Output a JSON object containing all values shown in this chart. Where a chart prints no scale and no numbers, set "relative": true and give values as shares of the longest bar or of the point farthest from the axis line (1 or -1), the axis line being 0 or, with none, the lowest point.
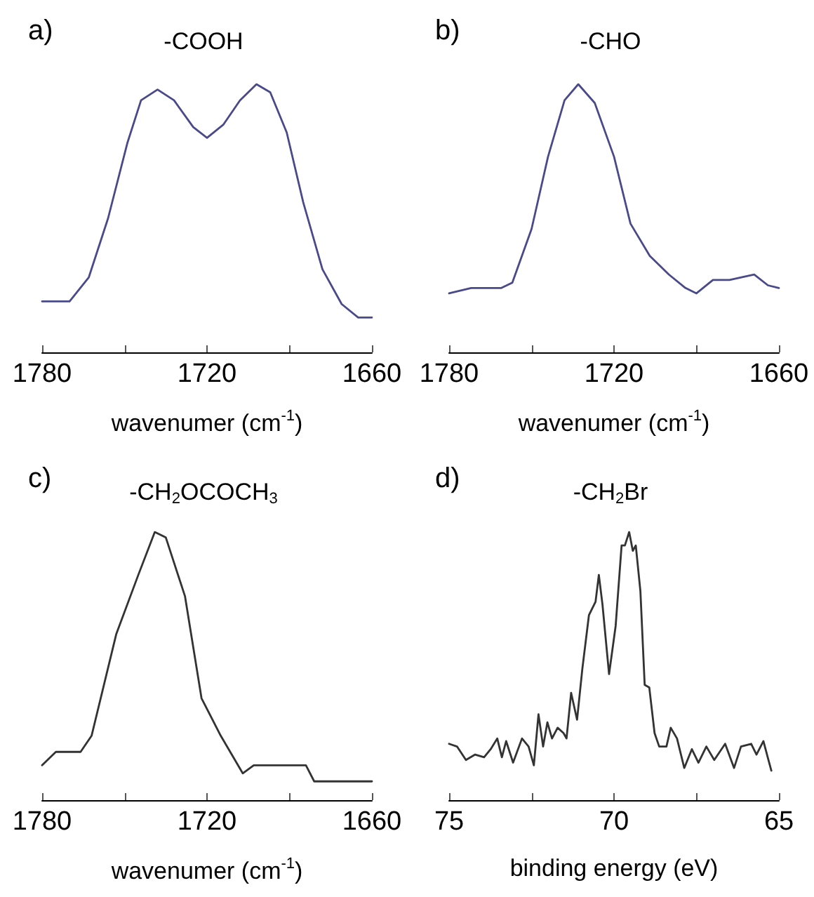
{
  "chart_data": [
    {
      "type": "line",
      "title": "-COOH",
      "annotations": [
        "a)"
      ],
      "xlabel": "wavenumer (cm$^{-1}$)",
      "relative": true,
      "xlim": [
        1780,
        1660
      ],
      "xticks": [
        1780,
        {
          "value": 1750,
          "label": null
        },
        1720,
        {
          "value": 1690,
          "label": null
        },
        1660
      ],
      "x": [
        1780,
        1770,
        1763,
        1756,
        1749,
        1744,
        1738,
        1732,
        1725,
        1720,
        1714,
        1708,
        1702,
        1697,
        1691,
        1685,
        1678,
        1671,
        1665,
        1660
      ],
      "series": [
        {
          "color": "#4a4a8a",
          "values": [
            0.19,
            0.19,
            0.28,
            0.5,
            0.78,
            0.94,
            0.98,
            0.94,
            0.84,
            0.8,
            0.85,
            0.94,
            1,
            0.97,
            0.82,
            0.56,
            0.31,
            0.18,
            0.13,
            0.13
          ]
        }
      ]
    },
    {
      "type": "line",
      "title": "-CHO",
      "annotations": [
        "b)"
      ],
      "xlabel": "wavenumer (cm$^{-1}$)",
      "relative": true,
      "xlim": [
        1780,
        1660
      ],
      "xticks": [
        1780,
        {
          "value": 1750,
          "label": null
        },
        1720,
        {
          "value": 1690,
          "label": null
        },
        1660
      ],
      "x": [
        1780,
        1772,
        1768,
        1761,
        1757,
        1750,
        1744,
        1738,
        1733,
        1727,
        1720,
        1714,
        1707,
        1700,
        1694,
        1690,
        1684,
        1678,
        1669,
        1664,
        1660
      ],
      "series": [
        {
          "color": "#4a4a8a",
          "values": [
            0.22,
            0.24,
            0.24,
            0.24,
            0.26,
            0.46,
            0.73,
            0.94,
            1,
            0.93,
            0.73,
            0.48,
            0.36,
            0.29,
            0.24,
            0.22,
            0.27,
            0.27,
            0.29,
            0.25,
            0.24
          ]
        }
      ]
    },
    {
      "type": "line",
      "title": "-CH$_{2}$OCOCH$_{3}$",
      "annotations": [
        "c)"
      ],
      "xlabel": "wavenumer (cm$^{-1}$)",
      "relative": true,
      "xlim": [
        1780,
        1660
      ],
      "xticks": [
        1780,
        {
          "value": 1750,
          "label": null
        },
        1720,
        {
          "value": 1690,
          "label": null
        },
        1660
      ],
      "x": [
        1780,
        1775,
        1766,
        1762,
        1753,
        1745,
        1739,
        1735,
        1728,
        1722,
        1715,
        1707,
        1703,
        1691,
        1684,
        1681,
        1660
      ],
      "series": [
        {
          "color": "#333333",
          "values": [
            0.13,
            0.18,
            0.18,
            0.24,
            0.62,
            0.84,
            1,
            0.98,
            0.76,
            0.38,
            0.24,
            0.1,
            0.13,
            0.13,
            0.13,
            0.07,
            0.07
          ]
        }
      ]
    },
    {
      "type": "line",
      "title": "-CH$_{2}$Br",
      "annotations": [
        "d)"
      ],
      "xlabel": "binding energy (eV)",
      "relative": true,
      "xlim": [
        75,
        65
      ],
      "xticks": [
        75,
        {
          "value": 72.5,
          "label": null
        },
        70,
        {
          "value": 67.5,
          "label": null
        },
        65
      ],
      "x": [
        75,
        74.76,
        74.49,
        74.21,
        73.94,
        73.74,
        73.54,
        73.4,
        73.27,
        73.06,
        72.79,
        72.59,
        72.43,
        72.29,
        72.15,
        72.02,
        71.88,
        71.71,
        71.53,
        71.44,
        71.3,
        71.12,
        70.96,
        70.76,
        70.56,
        70.46,
        70.35,
        70.15,
        69.95,
        69.77,
        69.67,
        69.54,
        69.43,
        69.34,
        69.2,
        69.07,
        68.93,
        68.77,
        68.63,
        68.41,
        68.28,
        68.09,
        67.87,
        67.64,
        67.44,
        67.2,
        66.96,
        66.63,
        66.36,
        66.15,
        65.84,
        65.68,
        65.47,
        65.34,
        65.23
      ],
      "series": [
        {
          "color": "#333333",
          "values": [
            0.21,
            0.2,
            0.15,
            0.17,
            0.16,
            0.19,
            0.23,
            0.16,
            0.22,
            0.14,
            0.23,
            0.2,
            0.13,
            0.32,
            0.2,
            0.29,
            0.23,
            0.27,
            0.25,
            0.23,
            0.4,
            0.3,
            0.49,
            0.69,
            0.74,
            0.84,
            0.73,
            0.47,
            0.65,
            0.95,
            0.95,
            1,
            0.93,
            0.95,
            0.78,
            0.43,
            0.42,
            0.25,
            0.2,
            0.2,
            0.27,
            0.23,
            0.12,
            0.19,
            0.14,
            0.2,
            0.15,
            0.21,
            0.12,
            0.2,
            0.21,
            0.17,
            0.22,
            0.16,
            0.11
          ]
        }
      ]
    }
  ]
}
